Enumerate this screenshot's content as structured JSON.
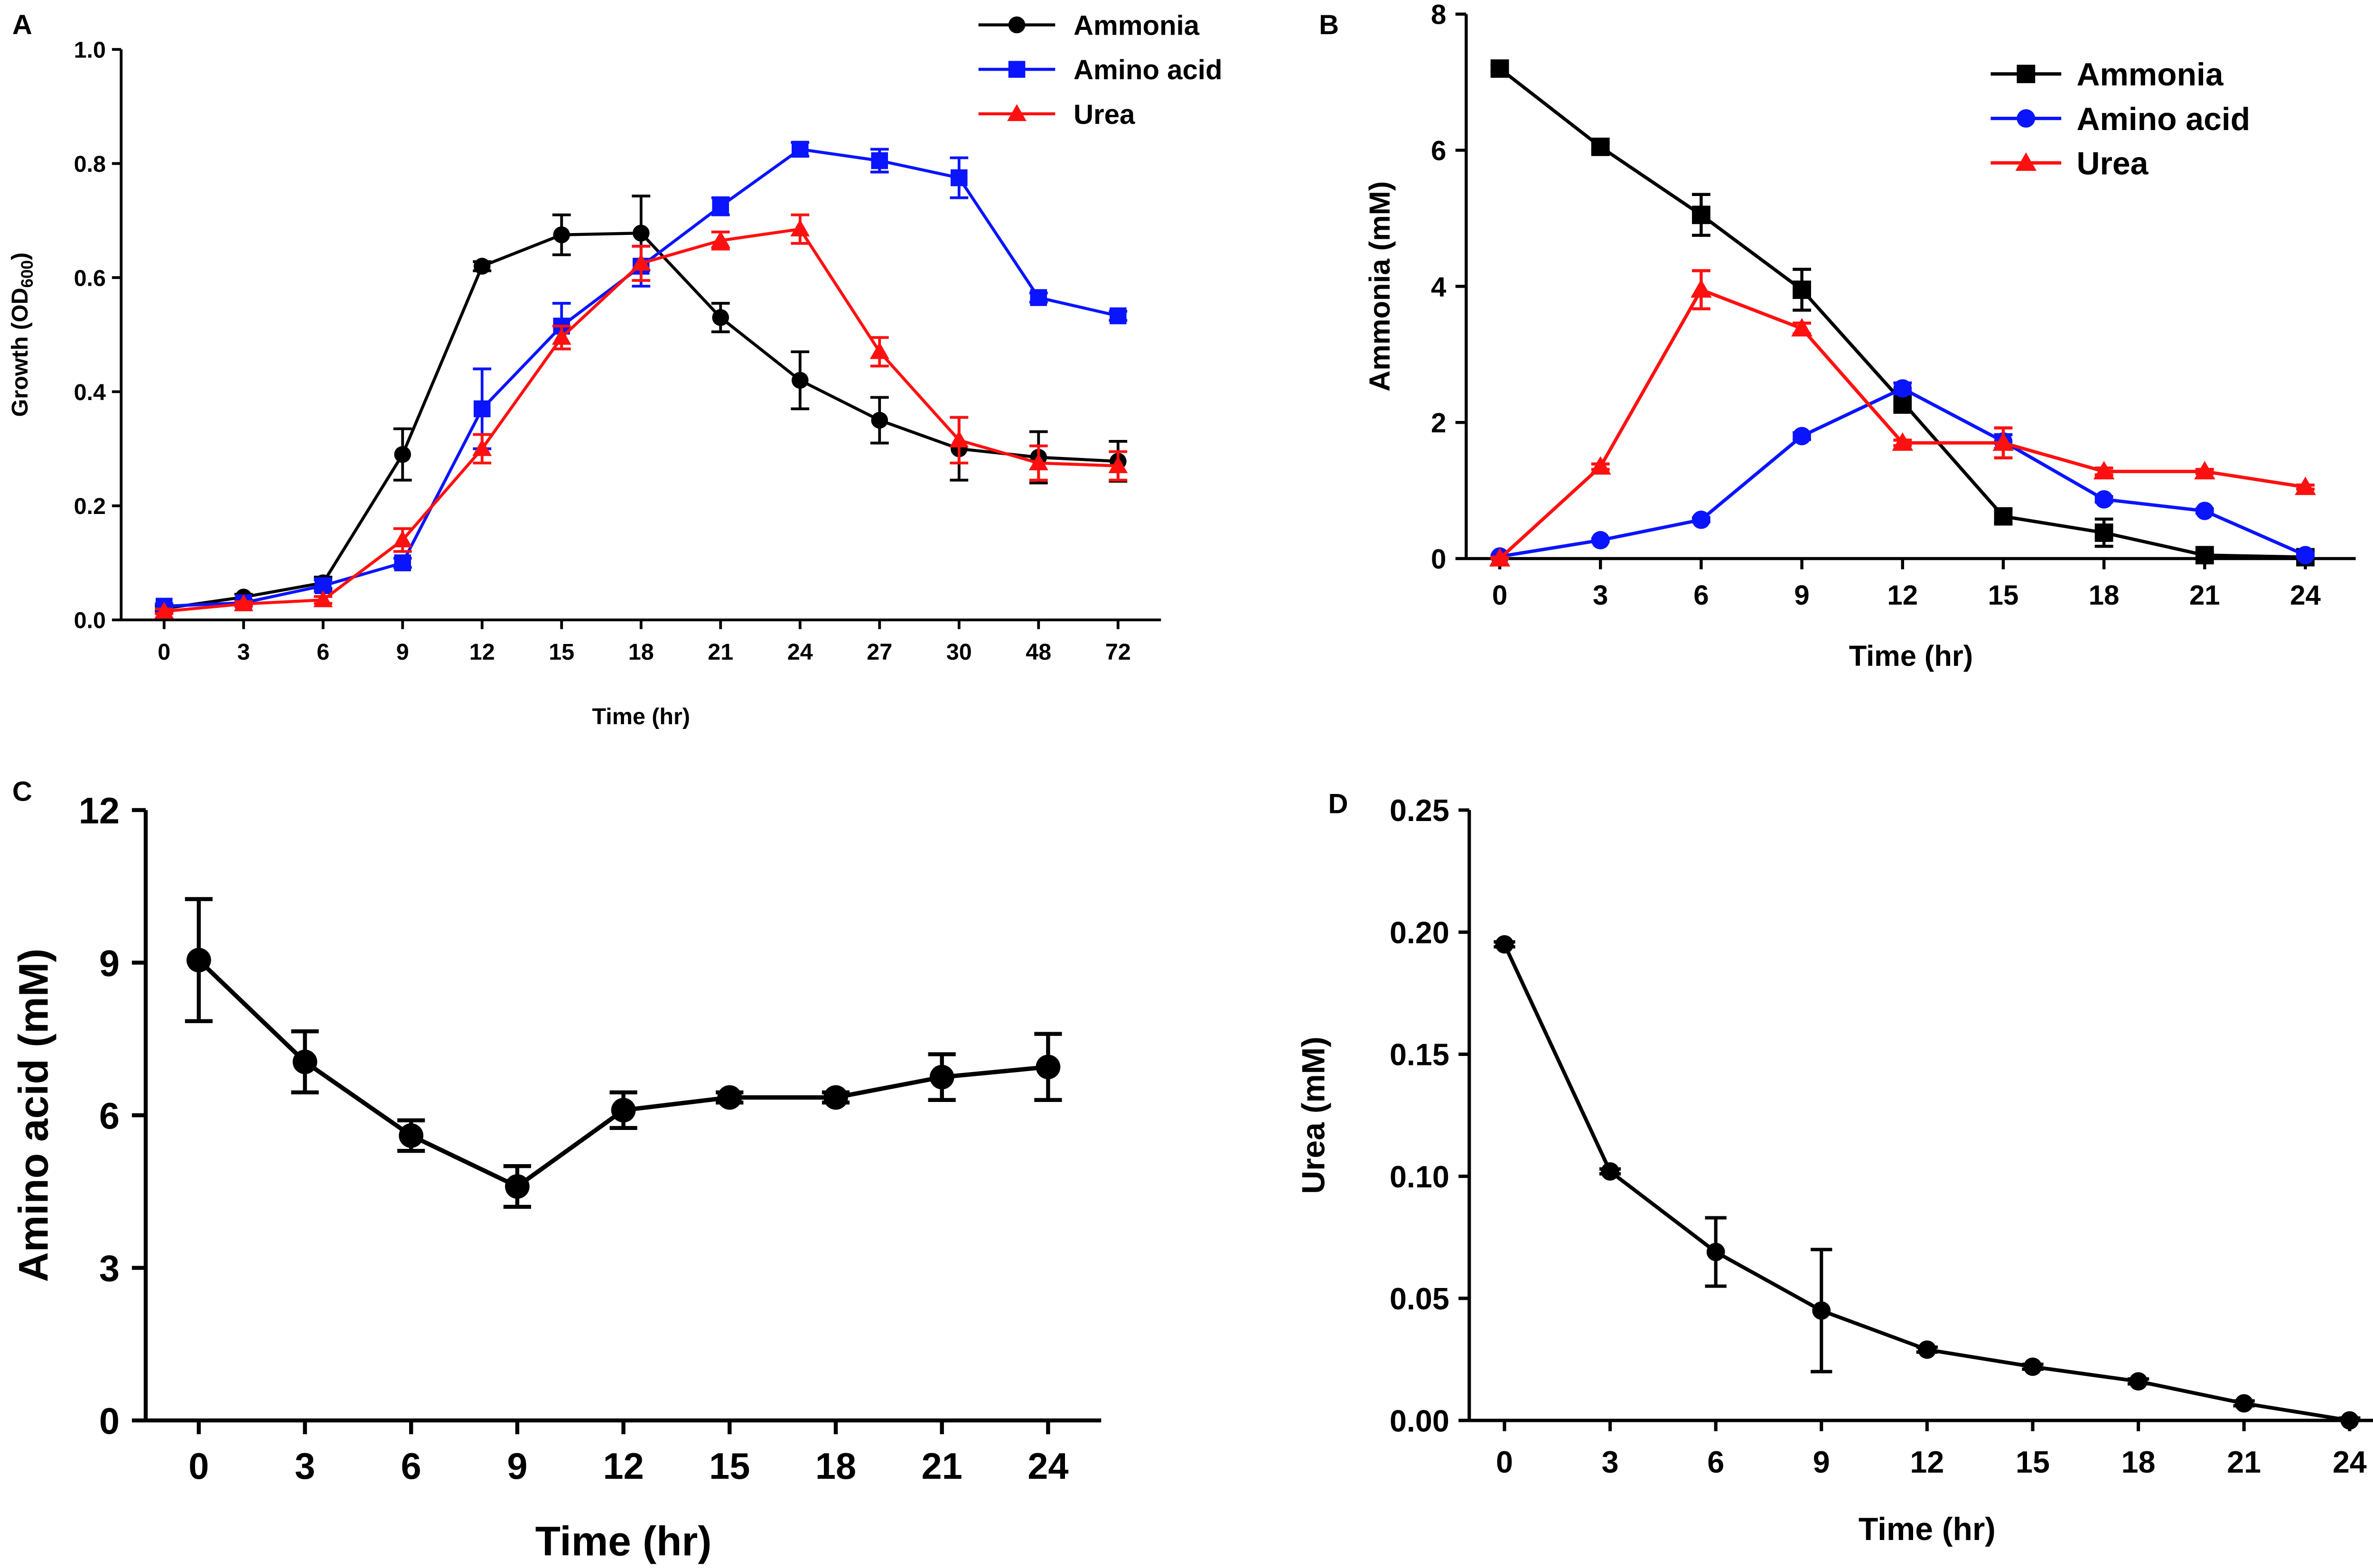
{
  "chart_data": [
    {
      "panel_label": "A",
      "type": "line",
      "xlabel": "Time (hr)",
      "ylabel": "Growth (OD",
      "ylabel_sub": "600",
      "ylabel_close": ")",
      "categories": [
        "0",
        "3",
        "6",
        "9",
        "12",
        "15",
        "18",
        "21",
        "24",
        "27",
        "30",
        "48",
        "72"
      ],
      "x_axis_kind": "categorical",
      "ylim": [
        0,
        1.0
      ],
      "yticks": [
        0.0,
        0.2,
        0.4,
        0.6,
        0.8,
        1.0
      ],
      "ytick_labels": [
        "0.0",
        "0.2",
        "0.4",
        "0.6",
        "0.8",
        "1.0"
      ],
      "legend_position": "top-right",
      "series": [
        {
          "name": "Ammonia",
          "color": "#000000",
          "marker": "circle",
          "values": [
            0.02,
            0.04,
            0.065,
            0.29,
            0.62,
            0.675,
            0.678,
            0.53,
            0.42,
            0.35,
            0.3,
            0.285,
            0.278
          ],
          "errors": [
            0.005,
            0.005,
            0.01,
            0.045,
            0.008,
            0.035,
            0.065,
            0.025,
            0.05,
            0.04,
            0.055,
            0.045,
            0.035
          ]
        },
        {
          "name": "Amino acid",
          "color": "#0a14ff",
          "marker": "square",
          "values": [
            0.024,
            0.03,
            0.06,
            0.1,
            0.37,
            0.515,
            0.62,
            0.725,
            0.825,
            0.805,
            0.775,
            0.565,
            0.533
          ],
          "errors": [
            0.004,
            0.005,
            0.01,
            0.008,
            0.07,
            0.04,
            0.035,
            0.015,
            0.012,
            0.02,
            0.035,
            0.008,
            0.008
          ]
        },
        {
          "name": "Urea",
          "color": "#ff1010",
          "marker": "triangle",
          "values": [
            0.015,
            0.028,
            0.035,
            0.14,
            0.3,
            0.495,
            0.625,
            0.665,
            0.685,
            0.47,
            0.315,
            0.275,
            0.27
          ],
          "errors": [
            0.004,
            0.004,
            0.006,
            0.02,
            0.025,
            0.02,
            0.03,
            0.015,
            0.025,
            0.025,
            0.04,
            0.03,
            0.025
          ]
        }
      ]
    },
    {
      "panel_label": "B",
      "type": "line",
      "xlabel": "Time (hr)",
      "ylabel": "Ammonia (mM)",
      "x": [
        0,
        3,
        6,
        9,
        12,
        15,
        18,
        21,
        24
      ],
      "xlim": [
        -1,
        25.5
      ],
      "xticks": [
        0,
        3,
        6,
        9,
        12,
        15,
        18,
        21,
        24
      ],
      "ylim": [
        0,
        8
      ],
      "yticks": [
        0,
        2,
        4,
        6,
        8
      ],
      "ytick_labels": [
        "0",
        "2",
        "4",
        "6",
        "8"
      ],
      "legend_position": "top-right",
      "series": [
        {
          "name": "Ammonia",
          "color": "#000000",
          "marker": "square",
          "values": [
            7.2,
            6.05,
            5.05,
            3.95,
            2.3,
            0.62,
            0.38,
            0.05,
            0.02
          ],
          "errors": [
            0.05,
            0.05,
            0.3,
            0.3,
            0.15,
            0.1,
            0.2,
            0.03,
            0.02
          ]
        },
        {
          "name": "Amino acid",
          "color": "#0a14ff",
          "marker": "circle",
          "values": [
            0.03,
            0.27,
            0.57,
            1.8,
            2.5,
            1.72,
            0.87,
            0.7,
            0.05
          ],
          "errors": [
            0.02,
            0.02,
            0.03,
            0.05,
            0.08,
            0.1,
            0.04,
            0.03,
            0.02
          ]
        },
        {
          "name": "Urea",
          "color": "#ff1010",
          "marker": "triangle",
          "values": [
            0.0,
            1.35,
            3.95,
            3.38,
            1.7,
            1.7,
            1.28,
            1.28,
            1.05
          ],
          "errors": [
            0.02,
            0.04,
            0.28,
            0.08,
            0.04,
            0.22,
            0.05,
            0.03,
            0.03
          ]
        }
      ]
    },
    {
      "panel_label": "C",
      "type": "line",
      "xlabel": "Time (hr)",
      "ylabel": "Amino acid (mM)",
      "x": [
        0,
        3,
        6,
        9,
        12,
        15,
        18,
        21,
        24
      ],
      "xlim": [
        -1.5,
        25.5
      ],
      "xticks": [
        0,
        3,
        6,
        9,
        12,
        15,
        18,
        21,
        24
      ],
      "ylim": [
        0,
        12
      ],
      "yticks": [
        0,
        3,
        6,
        9,
        12
      ],
      "ytick_labels": [
        "0",
        "3",
        "6",
        "9",
        "12"
      ],
      "series": [
        {
          "name": "",
          "color": "#000000",
          "marker": "circle",
          "values": [
            9.05,
            7.05,
            5.6,
            4.6,
            6.1,
            6.35,
            6.35,
            6.75,
            6.95
          ],
          "errors": [
            1.2,
            0.6,
            0.3,
            0.4,
            0.35,
            0.1,
            0.1,
            0.45,
            0.65
          ]
        }
      ]
    },
    {
      "panel_label": "D",
      "type": "line",
      "xlabel": "Time (hr)",
      "ylabel": "Urea (mM)",
      "x": [
        0,
        3,
        6,
        9,
        12,
        15,
        18,
        21,
        24
      ],
      "xlim": [
        -1,
        25
      ],
      "xticks": [
        0,
        3,
        6,
        9,
        12,
        15,
        18,
        21,
        24
      ],
      "ylim": [
        0,
        0.25
      ],
      "yticks": [
        0.0,
        0.05,
        0.1,
        0.15,
        0.2,
        0.25
      ],
      "ytick_labels": [
        "0.00",
        "0.05",
        "0.10",
        "0.15",
        "0.20",
        "0.25"
      ],
      "series": [
        {
          "name": "",
          "color": "#000000",
          "marker": "circle",
          "values": [
            0.195,
            0.102,
            0.069,
            0.045,
            0.029,
            0.022,
            0.016,
            0.007,
            0.0
          ],
          "errors": [
            0.001,
            0.001,
            0.014,
            0.025,
            0.001,
            0.001,
            0.001,
            0.001,
            0.001
          ]
        }
      ]
    }
  ]
}
